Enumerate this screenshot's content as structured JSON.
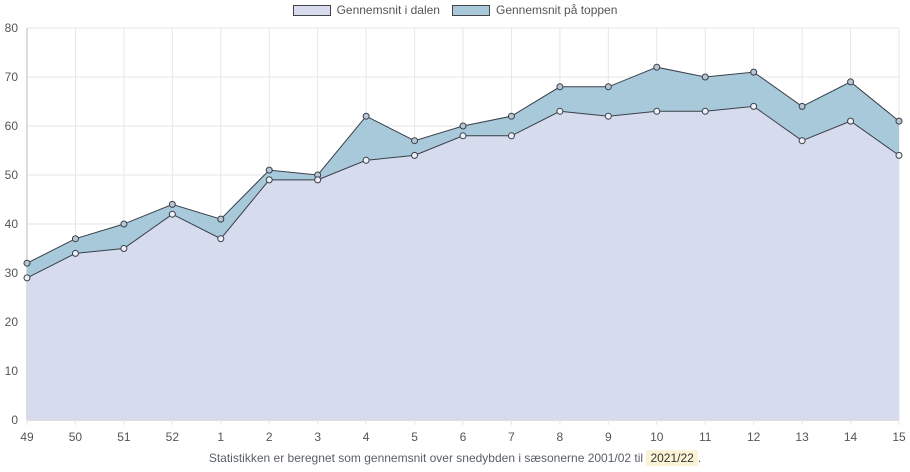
{
  "chart_data": {
    "type": "area",
    "categories": [
      "49",
      "50",
      "51",
      "52",
      "1",
      "2",
      "3",
      "4",
      "5",
      "6",
      "7",
      "8",
      "9",
      "10",
      "11",
      "12",
      "13",
      "14",
      "15"
    ],
    "series": [
      {
        "name": "Gennemsnit i dalen",
        "values": [
          29,
          34,
          35,
          42,
          37,
          49,
          49,
          53,
          54,
          58,
          58,
          63,
          62,
          63,
          63,
          64,
          57,
          61,
          54
        ],
        "color": "#d6dbee"
      },
      {
        "name": "Gennemsnit på toppen",
        "values": [
          32,
          37,
          40,
          44,
          41,
          51,
          50,
          62,
          57,
          60,
          62,
          68,
          68,
          72,
          70,
          71,
          64,
          69,
          61
        ],
        "color": "#a8c9da"
      }
    ],
    "ylim": [
      0,
      80
    ],
    "yticks": [
      0,
      10,
      20,
      30,
      40,
      50,
      60,
      70,
      80
    ],
    "grid": true,
    "legend": "top-center"
  },
  "footer": {
    "text": "Statistikken er beregnet som gennemsnit over snedybden i sæsonerne 2001/02 til",
    "season": "2021/22",
    "end": "."
  }
}
